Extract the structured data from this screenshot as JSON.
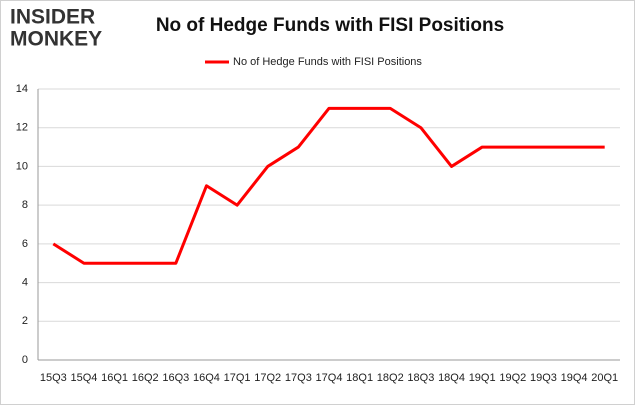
{
  "logo": [
    "INSIDER",
    "MONKEY"
  ],
  "chart_data": {
    "type": "line",
    "title": "No of Hedge Funds with FISI Positions",
    "categories": [
      "15Q3",
      "15Q4",
      "16Q1",
      "16Q2",
      "16Q3",
      "16Q4",
      "17Q1",
      "17Q2",
      "17Q3",
      "17Q4",
      "18Q1",
      "18Q2",
      "18Q3",
      "18Q4",
      "19Q1",
      "19Q2",
      "19Q3",
      "19Q4",
      "20Q1"
    ],
    "series": [
      {
        "name": "No of Hedge Funds with FISI Positions",
        "color": "#ff0000",
        "values": [
          6,
          5,
          5,
          5,
          5,
          9,
          8,
          10,
          11,
          13,
          13,
          13,
          12,
          10,
          11,
          11,
          11,
          11,
          11
        ]
      }
    ],
    "ylim": [
      0,
      14
    ],
    "yticks": [
      0,
      2,
      4,
      6,
      8,
      10,
      12,
      14
    ],
    "grid": true,
    "legend": "top"
  }
}
